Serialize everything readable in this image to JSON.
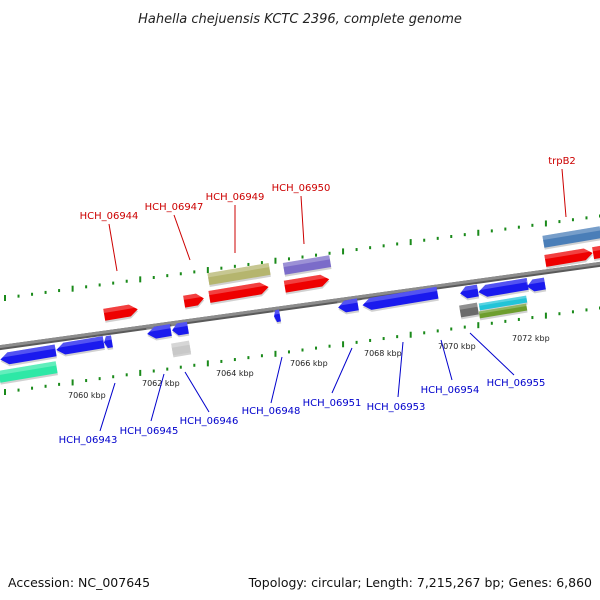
{
  "title": "Hahella chejuensis KCTC 2396, complete genome",
  "footer": {
    "accession": "Accession: NC_007645",
    "summary": "Topology: circular; Length: 7,215,267 bp; Genes: 6,860"
  },
  "colors": {
    "backbone": "#8c8c8c",
    "tick": "#1a8a1a",
    "forward_label": "#cc0000",
    "reverse_label": "#0000cc",
    "red": "#ee0000",
    "blue": "#1a1aee",
    "olive": "#b5b56e",
    "purple": "#7b6cc9",
    "steelblue": "#4a7eb8",
    "cyan": "#22c4d8",
    "green": "#6e9e2e",
    "teal": "#2ee8a6",
    "gray": "#6b6b6b",
    "lightgray": "#c8c8c8"
  },
  "scale_labels": [
    "7060 kbp",
    "7062 kbp",
    "7064 kbp",
    "7066 kbp",
    "7068 kbp",
    "7070 kbp",
    "7072 kbp"
  ],
  "forward_labels": [
    "HCH_06944",
    "HCH_06947",
    "HCH_06949",
    "HCH_06950",
    "trpB2"
  ],
  "reverse_labels": [
    "HCH_06943",
    "HCH_06945",
    "HCH_06946",
    "HCH_06948",
    "HCH_06951",
    "HCH_06953",
    "HCH_06954",
    "HCH_06955"
  ]
}
